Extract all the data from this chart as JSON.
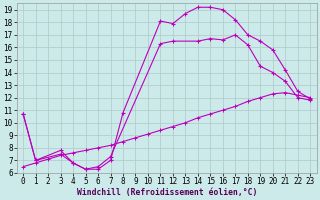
{
  "xlabel": "Windchill (Refroidissement éolien,°C)",
  "ylabel": "",
  "bg_color": "#cdeaea",
  "grid_color": "#b0c8c8",
  "line_color": "#bb00bb",
  "xlim": [
    -0.5,
    23.5
  ],
  "ylim": [
    6,
    19.5
  ],
  "xticks": [
    0,
    1,
    2,
    3,
    4,
    5,
    6,
    7,
    8,
    9,
    10,
    11,
    12,
    13,
    14,
    15,
    16,
    17,
    18,
    19,
    20,
    21,
    22,
    23
  ],
  "yticks": [
    6,
    7,
    8,
    9,
    10,
    11,
    12,
    13,
    14,
    15,
    16,
    17,
    18,
    19
  ],
  "curve1_x": [
    0,
    1,
    3,
    4,
    5,
    6,
    7,
    8,
    11,
    12,
    13,
    14,
    15,
    16,
    17,
    18,
    19,
    20,
    21,
    22,
    23
  ],
  "curve1_y": [
    10.7,
    7.0,
    7.8,
    6.8,
    6.3,
    6.3,
    7.0,
    10.8,
    18.1,
    17.9,
    18.7,
    19.2,
    19.2,
    19.0,
    18.2,
    17.0,
    16.5,
    15.8,
    14.2,
    12.5,
    11.9
  ],
  "curve2_x": [
    0,
    1,
    3,
    4,
    5,
    6,
    7,
    11,
    12,
    14,
    15,
    16,
    17,
    18,
    19,
    20,
    21,
    22,
    23
  ],
  "curve2_y": [
    10.7,
    7.0,
    7.5,
    6.8,
    6.3,
    6.5,
    7.3,
    16.3,
    16.5,
    16.5,
    16.7,
    16.6,
    17.0,
    16.2,
    14.5,
    14.0,
    13.3,
    12.0,
    11.8
  ],
  "curve3_x": [
    0,
    1,
    2,
    3,
    4,
    5,
    6,
    7,
    8,
    9,
    10,
    11,
    12,
    13,
    14,
    15,
    16,
    17,
    18,
    19,
    20,
    21,
    22,
    23
  ],
  "curve3_y": [
    6.5,
    6.8,
    7.1,
    7.4,
    7.6,
    7.8,
    8.0,
    8.2,
    8.5,
    8.8,
    9.1,
    9.4,
    9.7,
    10.0,
    10.4,
    10.7,
    11.0,
    11.3,
    11.7,
    12.0,
    12.3,
    12.4,
    12.2,
    12.0
  ]
}
